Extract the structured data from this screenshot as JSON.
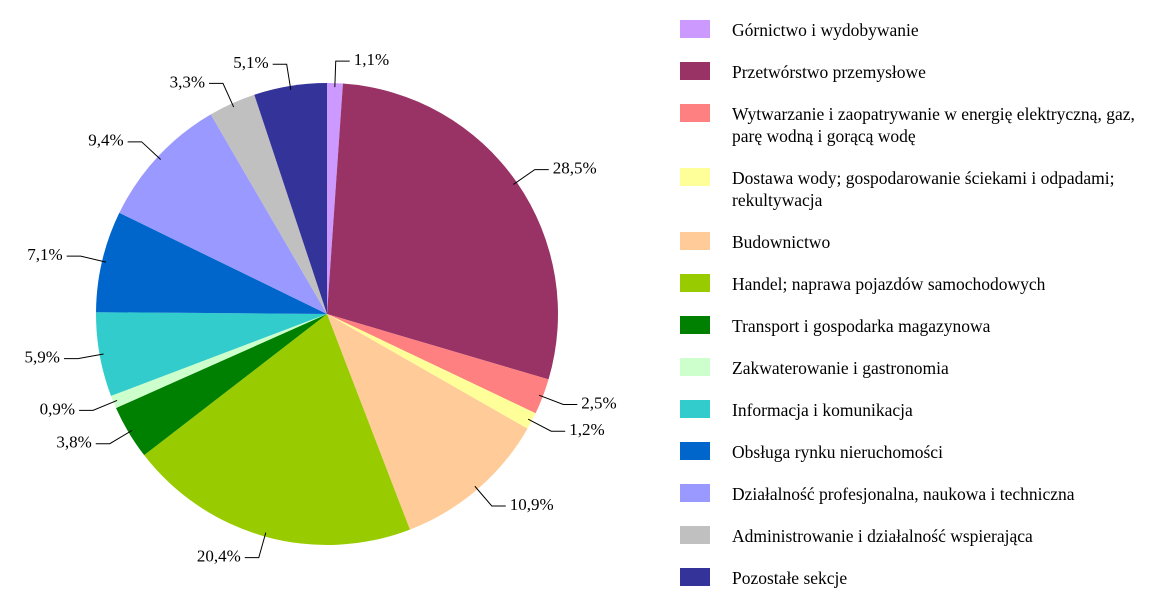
{
  "chart_data": {
    "type": "pie",
    "categories": [
      "Górnictwo i wydobywanie",
      "Przetwórstwo przemysłowe",
      "Wytwarzanie i zaopatrywanie w energię elektryczną, gaz, parę wodną i gorącą wodę",
      "Dostawa wody; gospodarowanie ściekami i odpadami; rekultywacja",
      "Budownictwo",
      "Handel; naprawa pojazdów samochodowych",
      "Transport i gospodarka magazynowa",
      "Zakwaterowanie i gastronomia",
      "Informacja i komunikacja",
      "Obsługa rynku nieruchomości",
      "Działalność profesjonalna, naukowa i techniczna",
      "Administrowanie i działalność wspierająca",
      "Pozostałe sekcje"
    ],
    "values": [
      1.1,
      28.5,
      2.5,
      1.2,
      10.9,
      20.4,
      3.8,
      0.9,
      5.9,
      7.1,
      9.4,
      3.3,
      5.1
    ],
    "value_labels": [
      "1,1%",
      "28,5%",
      "2,5%",
      "1,2%",
      "10,9%",
      "20,4%",
      "3,8%",
      "0,9%",
      "5,9%",
      "7,1%",
      "9,4%",
      "3,3%",
      "5,1%"
    ],
    "colors": [
      "#cc99ff",
      "#993366",
      "#ff8080",
      "#ffff99",
      "#ffcc99",
      "#99cc00",
      "#008000",
      "#ccffcc",
      "#33cccc",
      "#0066cc",
      "#9999ff",
      "#c0c0c0",
      "#333399"
    ],
    "legend": "right"
  }
}
